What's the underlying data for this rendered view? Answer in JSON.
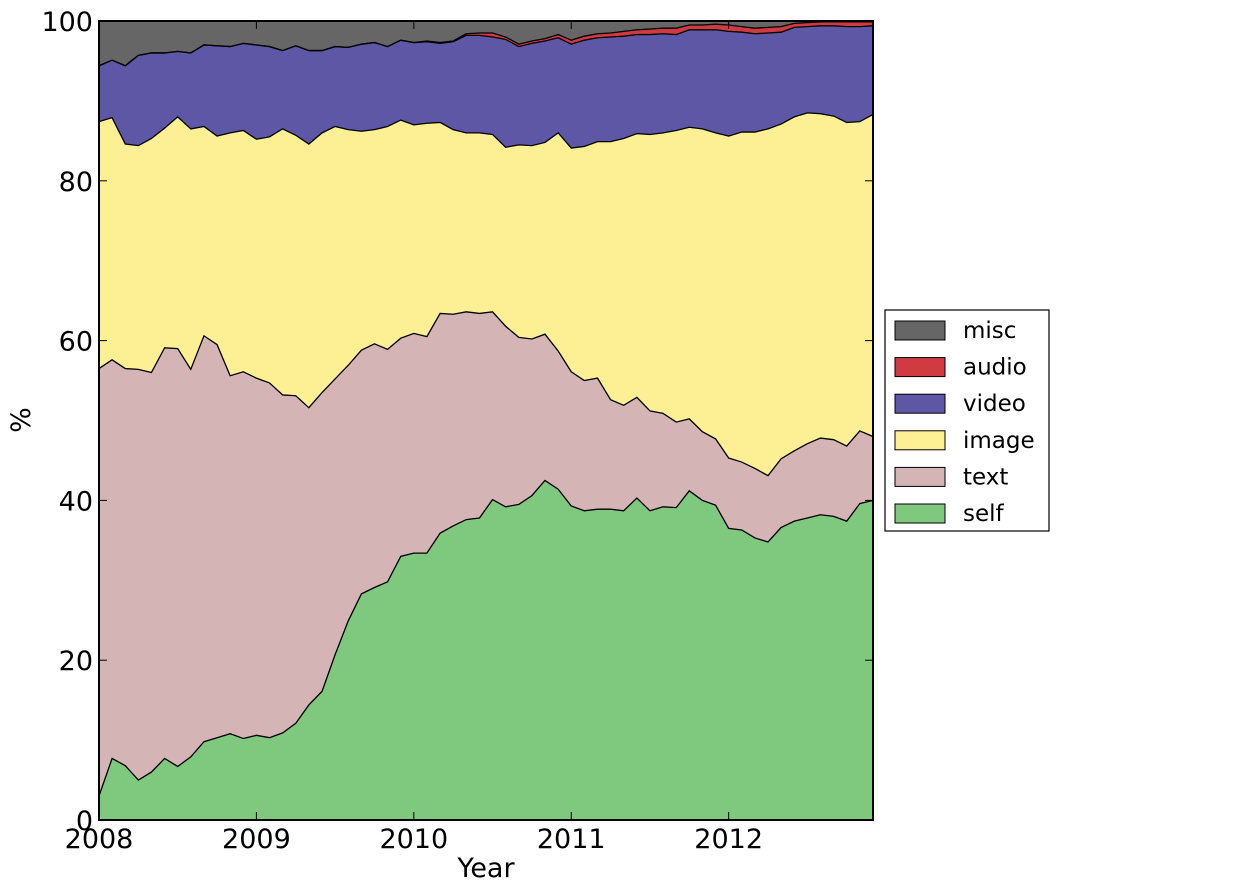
{
  "chart_data": {
    "type": "area",
    "stacked": true,
    "normalized_percent": true,
    "xlabel": "Year",
    "ylabel": "%",
    "xlim": [
      2008.0,
      2012.917
    ],
    "ylim": [
      0,
      100
    ],
    "x_ticks": [
      2008,
      2009,
      2010,
      2011,
      2012
    ],
    "y_ticks": [
      0,
      20,
      40,
      60,
      80,
      100
    ],
    "grid": false,
    "legend_position": "right, outside plot, vertically centered",
    "legend_order": [
      "misc",
      "audio",
      "video",
      "image",
      "text",
      "self"
    ],
    "x": [
      2008.0,
      2008.083,
      2008.167,
      2008.25,
      2008.333,
      2008.417,
      2008.5,
      2008.583,
      2008.667,
      2008.75,
      2008.833,
      2008.917,
      2009.0,
      2009.083,
      2009.167,
      2009.25,
      2009.333,
      2009.417,
      2009.5,
      2009.583,
      2009.667,
      2009.75,
      2009.833,
      2009.917,
      2010.0,
      2010.083,
      2010.167,
      2010.25,
      2010.333,
      2010.417,
      2010.5,
      2010.583,
      2010.667,
      2010.75,
      2010.833,
      2010.917,
      2011.0,
      2011.083,
      2011.167,
      2011.25,
      2011.333,
      2011.417,
      2011.5,
      2011.583,
      2011.667,
      2011.75,
      2011.833,
      2011.917,
      2012.0,
      2012.083,
      2012.167,
      2012.25,
      2012.333,
      2012.417,
      2012.5,
      2012.583,
      2012.667,
      2012.75,
      2012.833,
      2012.917
    ],
    "series": [
      {
        "name": "self",
        "color": "#7fc97f",
        "cumulative_top": [
          3.0,
          7.7,
          6.8,
          5.0,
          6.0,
          7.7,
          6.7,
          7.9,
          9.8,
          10.3,
          10.8,
          10.2,
          10.6,
          10.3,
          10.9,
          12.1,
          14.4,
          16.1,
          20.7,
          24.9,
          28.3,
          29.1,
          29.8,
          33.0,
          33.4,
          33.4,
          35.9,
          36.8,
          37.6,
          37.8,
          40.1,
          39.2,
          39.5,
          40.6,
          42.5,
          41.4,
          39.3,
          38.7,
          38.9,
          38.9,
          38.7,
          40.3,
          38.7,
          39.2,
          39.1,
          41.2,
          40.0,
          39.4,
          36.5,
          36.3,
          35.3,
          34.8,
          36.6,
          37.4,
          37.8,
          38.2,
          38.0,
          37.4,
          39.6,
          40.0
        ]
      },
      {
        "name": "text",
        "color": "#d4b4b4",
        "cumulative_top": [
          56.5,
          57.6,
          56.5,
          56.4,
          56.0,
          59.1,
          59.0,
          56.4,
          60.6,
          59.5,
          55.6,
          56.1,
          55.3,
          54.7,
          53.2,
          53.1,
          51.6,
          53.5,
          55.2,
          56.9,
          58.8,
          59.6,
          58.9,
          60.3,
          60.9,
          60.5,
          63.4,
          63.3,
          63.6,
          63.4,
          63.6,
          61.8,
          60.4,
          60.2,
          60.8,
          58.7,
          56.1,
          55.0,
          55.3,
          52.6,
          51.9,
          52.9,
          51.2,
          50.9,
          49.8,
          50.2,
          48.6,
          47.7,
          45.3,
          44.8,
          44.0,
          43.1,
          45.2,
          46.2,
          47.1,
          47.8,
          47.6,
          46.8,
          48.7,
          48.0
        ]
      },
      {
        "name": "image",
        "color": "#fdef93",
        "cumulative_top": [
          87.4,
          87.9,
          84.6,
          84.4,
          85.3,
          86.6,
          88.0,
          86.5,
          86.8,
          85.6,
          86.0,
          86.3,
          85.2,
          85.5,
          86.5,
          85.7,
          84.6,
          86.0,
          86.8,
          86.4,
          86.2,
          86.4,
          86.8,
          87.6,
          87.0,
          87.2,
          87.3,
          86.4,
          86.0,
          86.0,
          85.8,
          84.2,
          84.5,
          84.4,
          84.8,
          86.0,
          84.1,
          84.3,
          84.9,
          84.9,
          85.3,
          85.9,
          85.8,
          86.0,
          86.3,
          86.7,
          86.5,
          86.0,
          85.6,
          86.1,
          86.1,
          86.5,
          87.1,
          88.0,
          88.5,
          88.4,
          88.1,
          87.3,
          87.4,
          88.3
        ]
      },
      {
        "name": "video",
        "color": "#5e57a6",
        "cumulative_top": [
          94.4,
          95.1,
          94.4,
          95.7,
          96.0,
          96.0,
          96.2,
          96.0,
          97.0,
          96.9,
          96.8,
          97.2,
          97.0,
          96.8,
          96.3,
          96.9,
          96.3,
          96.3,
          96.8,
          96.7,
          97.1,
          97.3,
          96.8,
          97.6,
          97.3,
          97.4,
          97.2,
          97.4,
          98.2,
          98.2,
          98.0,
          97.7,
          96.8,
          97.2,
          97.5,
          97.9,
          97.1,
          97.6,
          97.9,
          98.0,
          98.1,
          98.3,
          98.3,
          98.4,
          98.3,
          98.9,
          98.9,
          98.9,
          98.7,
          98.6,
          98.4,
          98.5,
          98.6,
          99.2,
          99.3,
          99.4,
          99.4,
          99.3,
          99.3,
          99.4
        ]
      },
      {
        "name": "audio",
        "color": "#d03a41",
        "cumulative_top": [
          94.4,
          95.1,
          94.4,
          95.7,
          96.0,
          96.0,
          96.2,
          96.0,
          97.0,
          96.9,
          96.8,
          97.2,
          97.0,
          96.8,
          96.3,
          96.9,
          96.3,
          96.3,
          96.8,
          96.7,
          97.1,
          97.3,
          96.8,
          97.6,
          97.3,
          97.5,
          97.3,
          97.5,
          98.4,
          98.5,
          98.5,
          98.0,
          97.1,
          97.5,
          97.8,
          98.3,
          97.6,
          98.1,
          98.4,
          98.5,
          98.7,
          98.9,
          99.0,
          99.1,
          99.1,
          99.5,
          99.5,
          99.6,
          99.5,
          99.3,
          99.1,
          99.2,
          99.3,
          99.7,
          99.8,
          99.9,
          99.9,
          99.9,
          99.9,
          99.9
        ]
      },
      {
        "name": "misc",
        "color": "#666666",
        "cumulative_top": [
          100,
          100,
          100,
          100,
          100,
          100,
          100,
          100,
          100,
          100,
          100,
          100,
          100,
          100,
          100,
          100,
          100,
          100,
          100,
          100,
          100,
          100,
          100,
          100,
          100,
          100,
          100,
          100,
          100,
          100,
          100,
          100,
          100,
          100,
          100,
          100,
          100,
          100,
          100,
          100,
          100,
          100,
          100,
          100,
          100,
          100,
          100,
          100,
          100,
          100,
          100,
          100,
          100,
          100,
          100,
          100,
          100,
          100,
          100,
          100
        ]
      }
    ]
  }
}
